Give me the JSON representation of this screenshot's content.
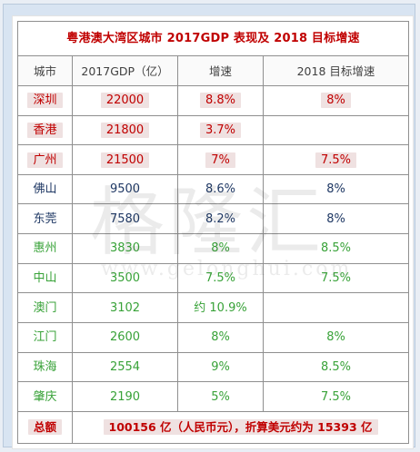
{
  "title": "粤港澳大湾区城市 2017GDP 表现及 2018 目标增速",
  "headers": [
    "城市",
    "2017GDP（亿）",
    "增速",
    "2018 目标增速"
  ],
  "rows": [
    {
      "city": "深圳",
      "gdp": "22000",
      "growth": "8.8%",
      "target": "8%"
    },
    {
      "city": "香港",
      "gdp": "21800",
      "growth": "3.7%",
      "target": ""
    },
    {
      "city": "广州",
      "gdp": "21500",
      "growth": "7%",
      "target": "7.5%"
    },
    {
      "city": "佛山",
      "gdp": "9500",
      "growth": "8.6%",
      "target": "8%"
    },
    {
      "city": "东莞",
      "gdp": "7580",
      "growth": "8.2%",
      "target": "8%"
    },
    {
      "city": "惠州",
      "gdp": "3830",
      "growth": "8%",
      "target": "8.5%"
    },
    {
      "city": "中山",
      "gdp": "3500",
      "growth": "7.5%",
      "target": "7.5%"
    },
    {
      "city": "澳门",
      "gdp": "3102",
      "growth": "约 10.9%",
      "target": ""
    },
    {
      "city": "江门",
      "gdp": "2600",
      "growth": "8%",
      "target": "8%"
    },
    {
      "city": "珠海",
      "gdp": "2554",
      "growth": "9%",
      "target": "8.5%"
    },
    {
      "city": "肇庆",
      "gdp": "2190",
      "growth": "5%",
      "target": "7.5%"
    }
  ],
  "total": {
    "label": "总额",
    "value": "100156 亿（人民币元），折算美元约为 15393 亿"
  },
  "watermark": {
    "logo_text": "格隆汇",
    "url": "www.gelonghui.com"
  },
  "colors": {
    "red": "#c00000",
    "navy": "#1f3864",
    "green": "#38a238",
    "highlight": "#efe1e1"
  }
}
